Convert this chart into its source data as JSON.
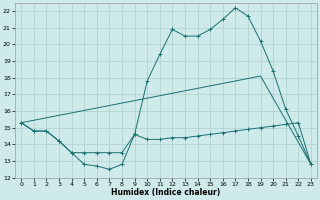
{
  "xlabel": "Humidex (Indice chaleur)",
  "xlim": [
    -0.5,
    23.5
  ],
  "ylim": [
    12,
    22.5
  ],
  "yticks": [
    12,
    13,
    14,
    15,
    16,
    17,
    18,
    19,
    20,
    21,
    22
  ],
  "xticks": [
    0,
    1,
    2,
    3,
    4,
    5,
    6,
    7,
    8,
    9,
    10,
    11,
    12,
    13,
    14,
    15,
    16,
    17,
    18,
    19,
    20,
    21,
    22,
    23
  ],
  "background_color": "#ceeaea",
  "grid_color": "#aed0d0",
  "line_color": "#1a7070",
  "line1_x": [
    0,
    1,
    2,
    3,
    4,
    5,
    6,
    7,
    8,
    9,
    10,
    11,
    12,
    13,
    14,
    15,
    16,
    17,
    18,
    19,
    20,
    21,
    22,
    23
  ],
  "line1_y": [
    15.3,
    14.8,
    14.8,
    14.2,
    13.5,
    12.8,
    12.7,
    12.5,
    12.8,
    14.6,
    17.8,
    19.4,
    20.9,
    20.5,
    20.5,
    20.9,
    21.5,
    22.2,
    21.7,
    20.2,
    18.4,
    16.1,
    14.5,
    12.8
  ],
  "line2_x": [
    0,
    1,
    2,
    3,
    4,
    5,
    6,
    7,
    8,
    9,
    10,
    11,
    12,
    13,
    14,
    15,
    16,
    17,
    18,
    19,
    20,
    21,
    22,
    23
  ],
  "line2_y": [
    15.3,
    14.8,
    14.8,
    14.2,
    13.5,
    13.5,
    13.5,
    13.5,
    13.5,
    14.6,
    14.3,
    14.3,
    14.4,
    14.4,
    14.5,
    14.6,
    14.7,
    14.8,
    14.9,
    15.0,
    15.1,
    15.2,
    15.3,
    12.8
  ],
  "line3_x": [
    0,
    19,
    23
  ],
  "line3_y": [
    15.3,
    18.1,
    12.8
  ]
}
